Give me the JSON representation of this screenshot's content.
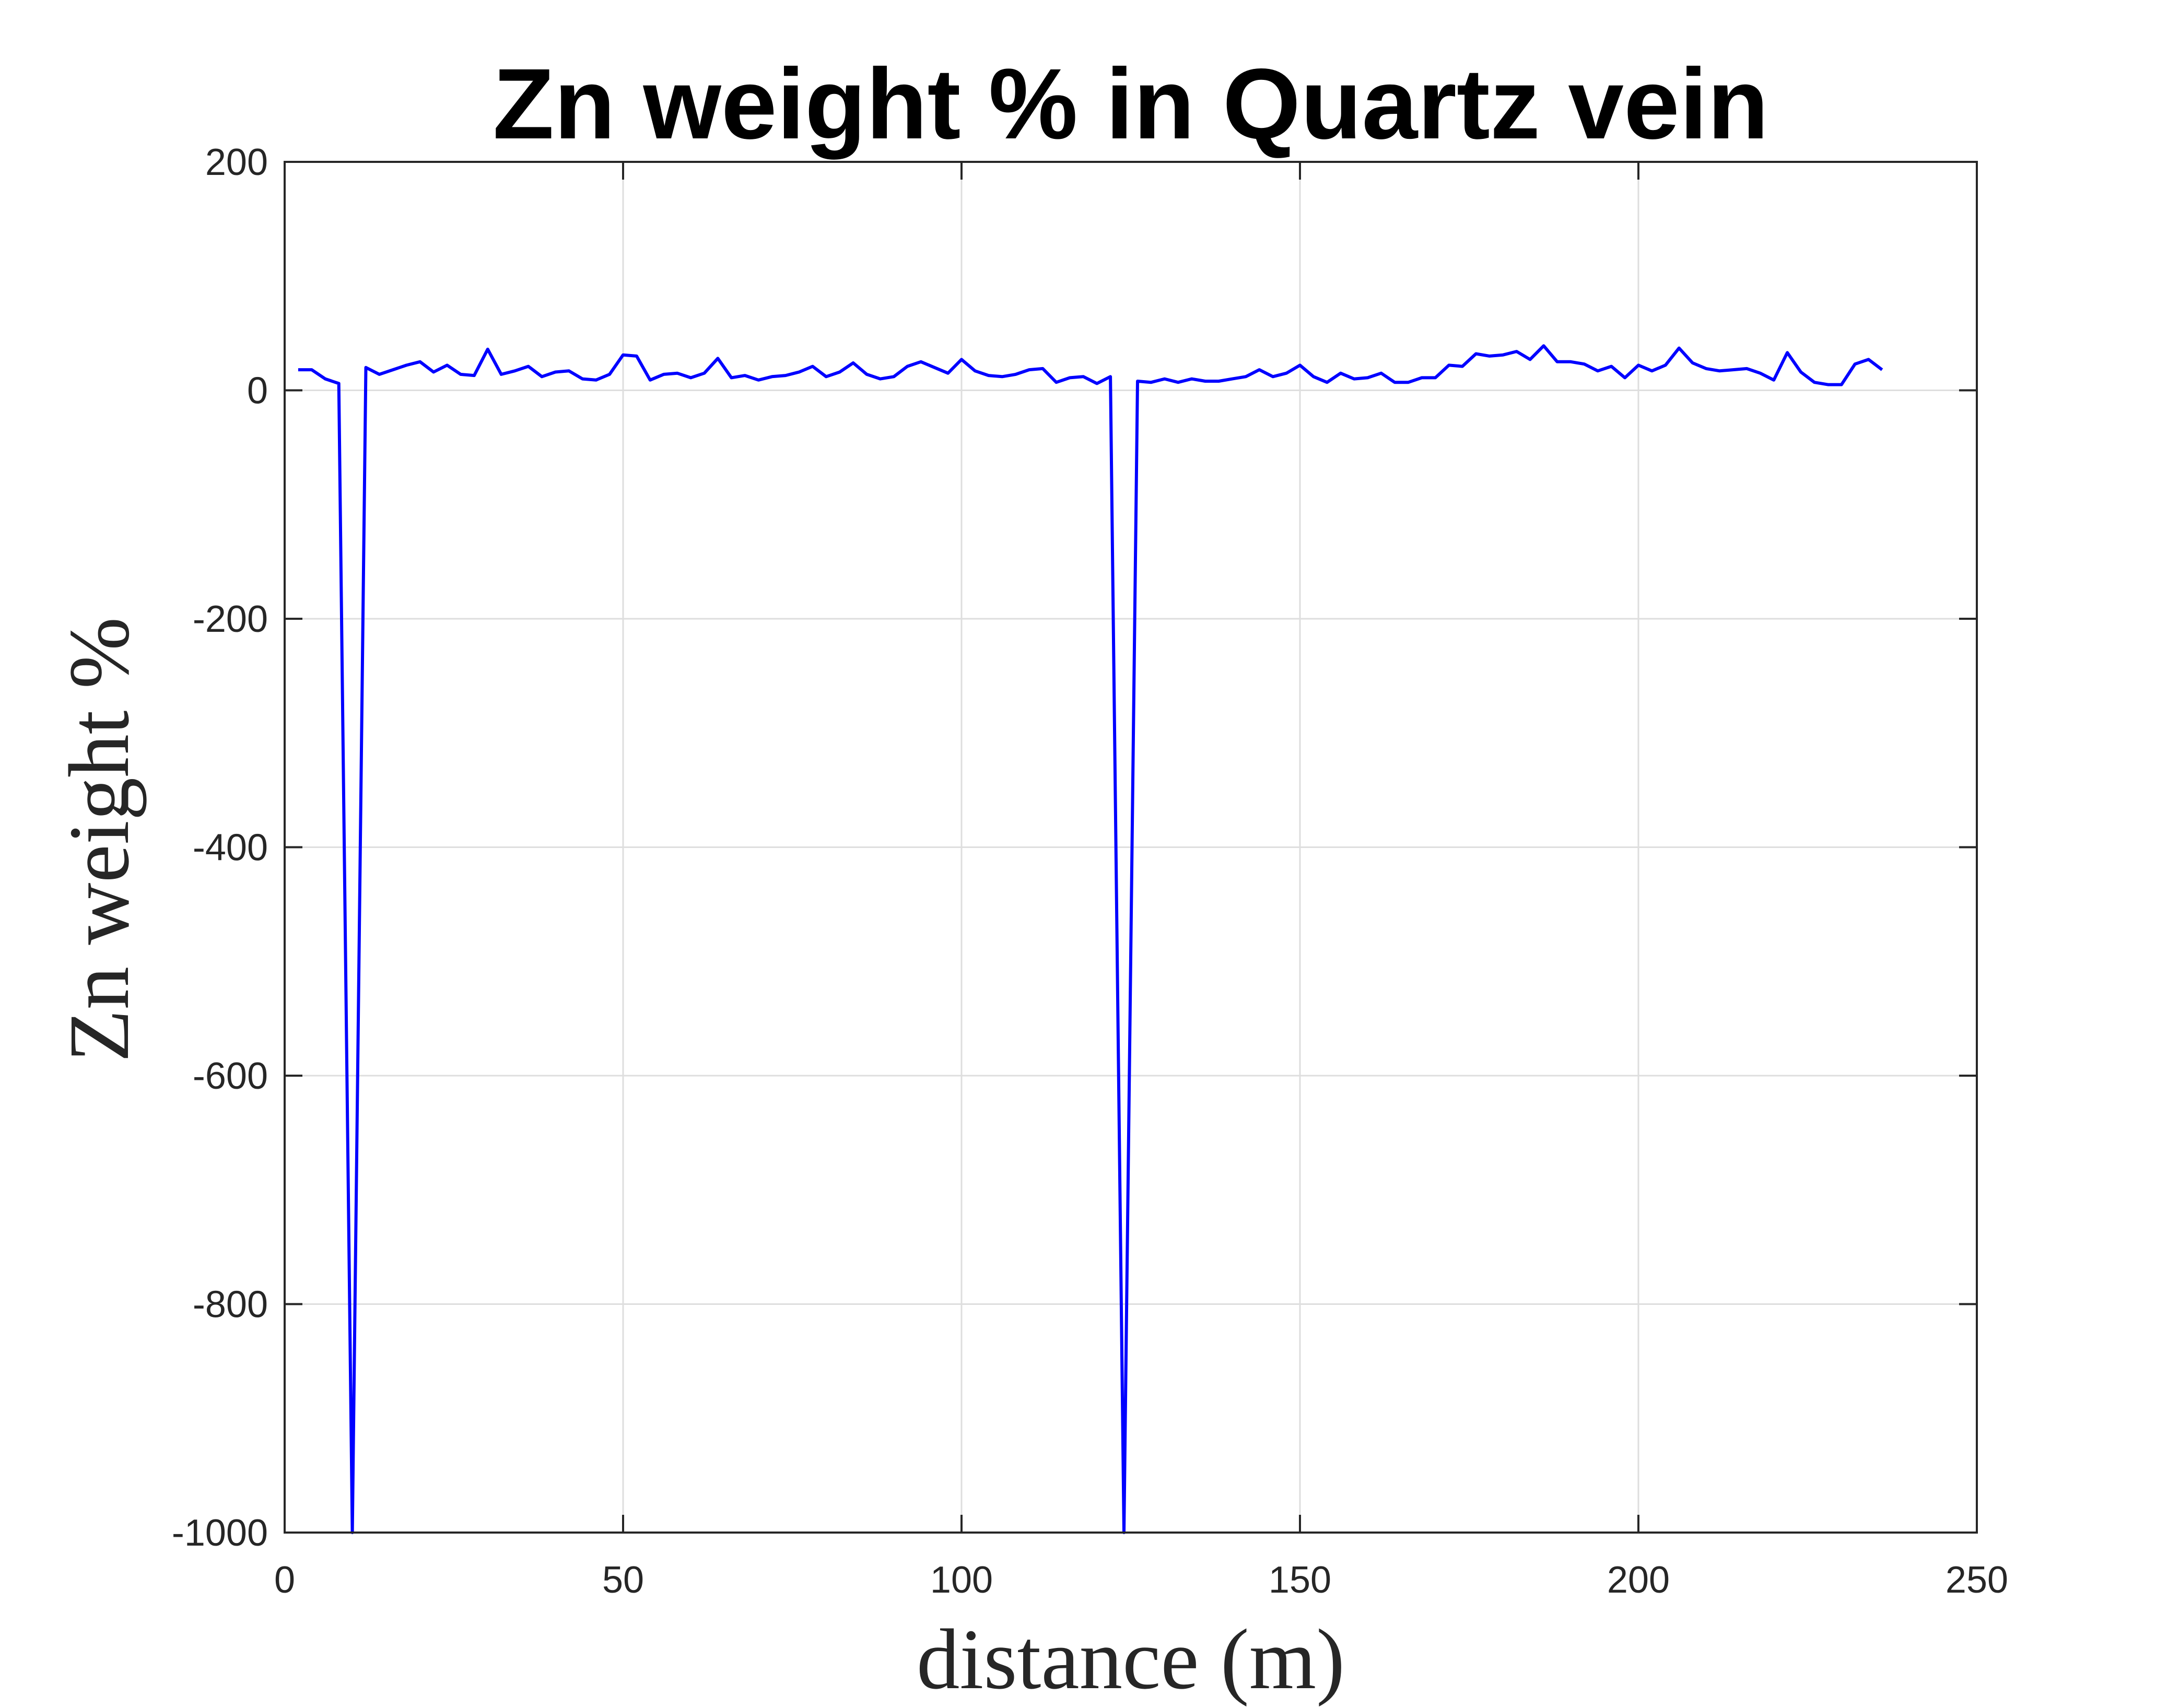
{
  "chart_data": {
    "type": "line",
    "title": "Zn weight % in Quartz vein",
    "xlabel": "distance (m)",
    "ylabel": "Zn weight %",
    "xlim": [
      0,
      250
    ],
    "ylim": [
      -1000,
      200
    ],
    "xticks": [
      0,
      50,
      100,
      150,
      200,
      250
    ],
    "xtick_labels": [
      "0",
      "50",
      "100",
      "150",
      "200",
      "250"
    ],
    "yticks": [
      200,
      0,
      -200,
      -400,
      -600,
      -800,
      -1000
    ],
    "ytick_labels": [
      "200",
      "0",
      "-200",
      "-400",
      "-600",
      "-800",
      "-1000"
    ],
    "grid": true,
    "line_color": "#0000ff",
    "series": [
      {
        "x": [
          2,
          4,
          6,
          8,
          10,
          12,
          14,
          16,
          18,
          20,
          22,
          24,
          26,
          28,
          30,
          32,
          34,
          36,
          38,
          40,
          42,
          44,
          46,
          48,
          50,
          52,
          54,
          56,
          58,
          60,
          62,
          64,
          66,
          68,
          70,
          72,
          74,
          76,
          78,
          80,
          82,
          84,
          86,
          88,
          90,
          92,
          94,
          96,
          98,
          100,
          102,
          104,
          106,
          108,
          110,
          112,
          114,
          116,
          118,
          120,
          122,
          124,
          126,
          128,
          130,
          132,
          134,
          136,
          138,
          140,
          142,
          144,
          146,
          148,
          150,
          152,
          154,
          156,
          158,
          160,
          162,
          164,
          166,
          168,
          170,
          172,
          174,
          176,
          178,
          180,
          182,
          184,
          186,
          188,
          190,
          192,
          194,
          196,
          198,
          200,
          202,
          204,
          206,
          208,
          210,
          212,
          214,
          216,
          218,
          220,
          222,
          224,
          226,
          228,
          230,
          232,
          234,
          236
        ],
        "y": [
          18,
          18,
          10,
          6,
          -1000,
          20,
          14,
          18,
          22,
          25,
          16,
          22,
          14,
          13,
          36,
          14,
          17,
          21,
          12,
          16,
          17,
          10,
          9,
          14,
          31,
          30,
          9,
          14,
          15,
          11,
          15,
          28,
          11,
          13,
          9,
          12,
          13,
          16,
          21,
          12,
          16,
          24,
          14,
          10,
          12,
          21,
          25,
          20,
          15,
          27,
          17,
          13,
          12,
          14,
          18,
          19,
          7,
          11,
          12,
          6,
          12,
          -1000,
          8,
          7,
          10,
          7,
          10,
          8,
          8,
          10,
          12,
          18,
          12,
          15,
          22,
          12,
          7,
          15,
          10,
          11,
          15,
          7,
          7,
          11,
          11,
          22,
          21,
          32,
          30,
          31,
          34,
          27,
          39,
          25,
          25,
          23,
          17,
          21,
          11,
          22,
          17,
          22,
          37,
          24,
          19,
          17,
          18,
          19,
          15,
          9,
          33,
          16,
          7,
          5,
          5,
          23,
          27,
          18
        ]
      }
    ]
  }
}
